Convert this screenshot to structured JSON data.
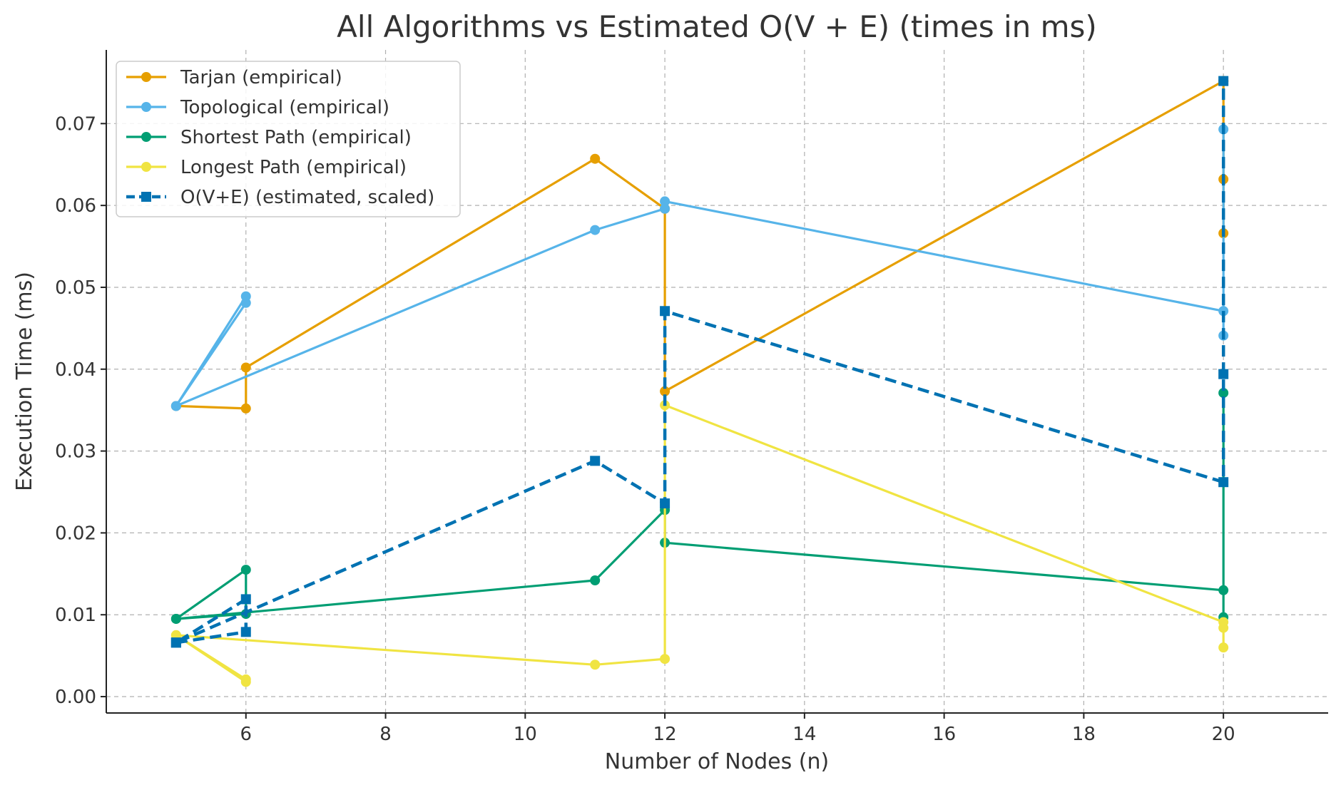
{
  "chart_data": {
    "type": "line",
    "title": "All Algorithms vs Estimated O(V + E) (times in ms)",
    "xlabel": "Number of Nodes (n)",
    "ylabel": "Execution Time (ms)",
    "xlim": [
      4.0,
      21.5
    ],
    "ylim": [
      -0.002,
      0.079
    ],
    "xticks": [
      6,
      8,
      10,
      12,
      14,
      16,
      18,
      20
    ],
    "yticks": [
      0.0,
      0.01,
      0.02,
      0.03,
      0.04,
      0.05,
      0.06,
      0.07
    ],
    "xtick_labels": [
      "6",
      "8",
      "10",
      "12",
      "14",
      "16",
      "18",
      "20"
    ],
    "ytick_labels": [
      "0.00",
      "0.01",
      "0.02",
      "0.03",
      "0.04",
      "0.05",
      "0.06",
      "0.07"
    ],
    "grid": true,
    "legend_position": "top-left",
    "series": [
      {
        "name": "Tarjan (empirical)",
        "color": "#E69F00",
        "style": "solid",
        "marker": "circle",
        "x": [
          5,
          5,
          6,
          6,
          11,
          12,
          12,
          20,
          20,
          20,
          20
        ],
        "y": [
          0.0355,
          0.0355,
          0.0352,
          0.0402,
          0.0657,
          0.0596,
          0.0373,
          0.0752,
          0.0632,
          0.0566,
          0.0752
        ]
      },
      {
        "name": "Topological (empirical)",
        "color": "#56B4E9",
        "style": "solid",
        "marker": "circle",
        "x": [
          5,
          5,
          6,
          6,
          5,
          11,
          12,
          12,
          20,
          20,
          20
        ],
        "y": [
          0.0355,
          0.0355,
          0.0481,
          0.0489,
          0.0355,
          0.057,
          0.0596,
          0.0605,
          0.0471,
          0.0441,
          0.0693
        ]
      },
      {
        "name": "Shortest Path (empirical)",
        "color": "#009E73",
        "style": "solid",
        "marker": "circle",
        "x": [
          5,
          5,
          6,
          6,
          5,
          11,
          12,
          12,
          20,
          20,
          20
        ],
        "y": [
          0.0095,
          0.0095,
          0.0155,
          0.0101,
          0.0095,
          0.0142,
          0.0228,
          0.0188,
          0.013,
          0.0097,
          0.0371
        ]
      },
      {
        "name": "Longest Path (empirical)",
        "color": "#F0E442",
        "style": "solid",
        "marker": "circle",
        "x": [
          5,
          5,
          6,
          6,
          5,
          11,
          12,
          12,
          20,
          20,
          20
        ],
        "y": [
          0.0075,
          0.0075,
          0.0018,
          0.0021,
          0.0075,
          0.0039,
          0.0046,
          0.0356,
          0.0091,
          0.006,
          0.0084
        ]
      },
      {
        "name": "O(V+E) (estimated, scaled)",
        "color": "#0072B2",
        "style": "dashed",
        "marker": "square",
        "x": [
          5,
          5,
          6,
          6,
          5,
          11,
          12,
          12,
          20,
          20,
          20
        ],
        "y": [
          0.0066,
          0.0066,
          0.0079,
          0.0119,
          0.0066,
          0.0288,
          0.0236,
          0.0471,
          0.0262,
          0.0394,
          0.0752
        ]
      }
    ]
  }
}
